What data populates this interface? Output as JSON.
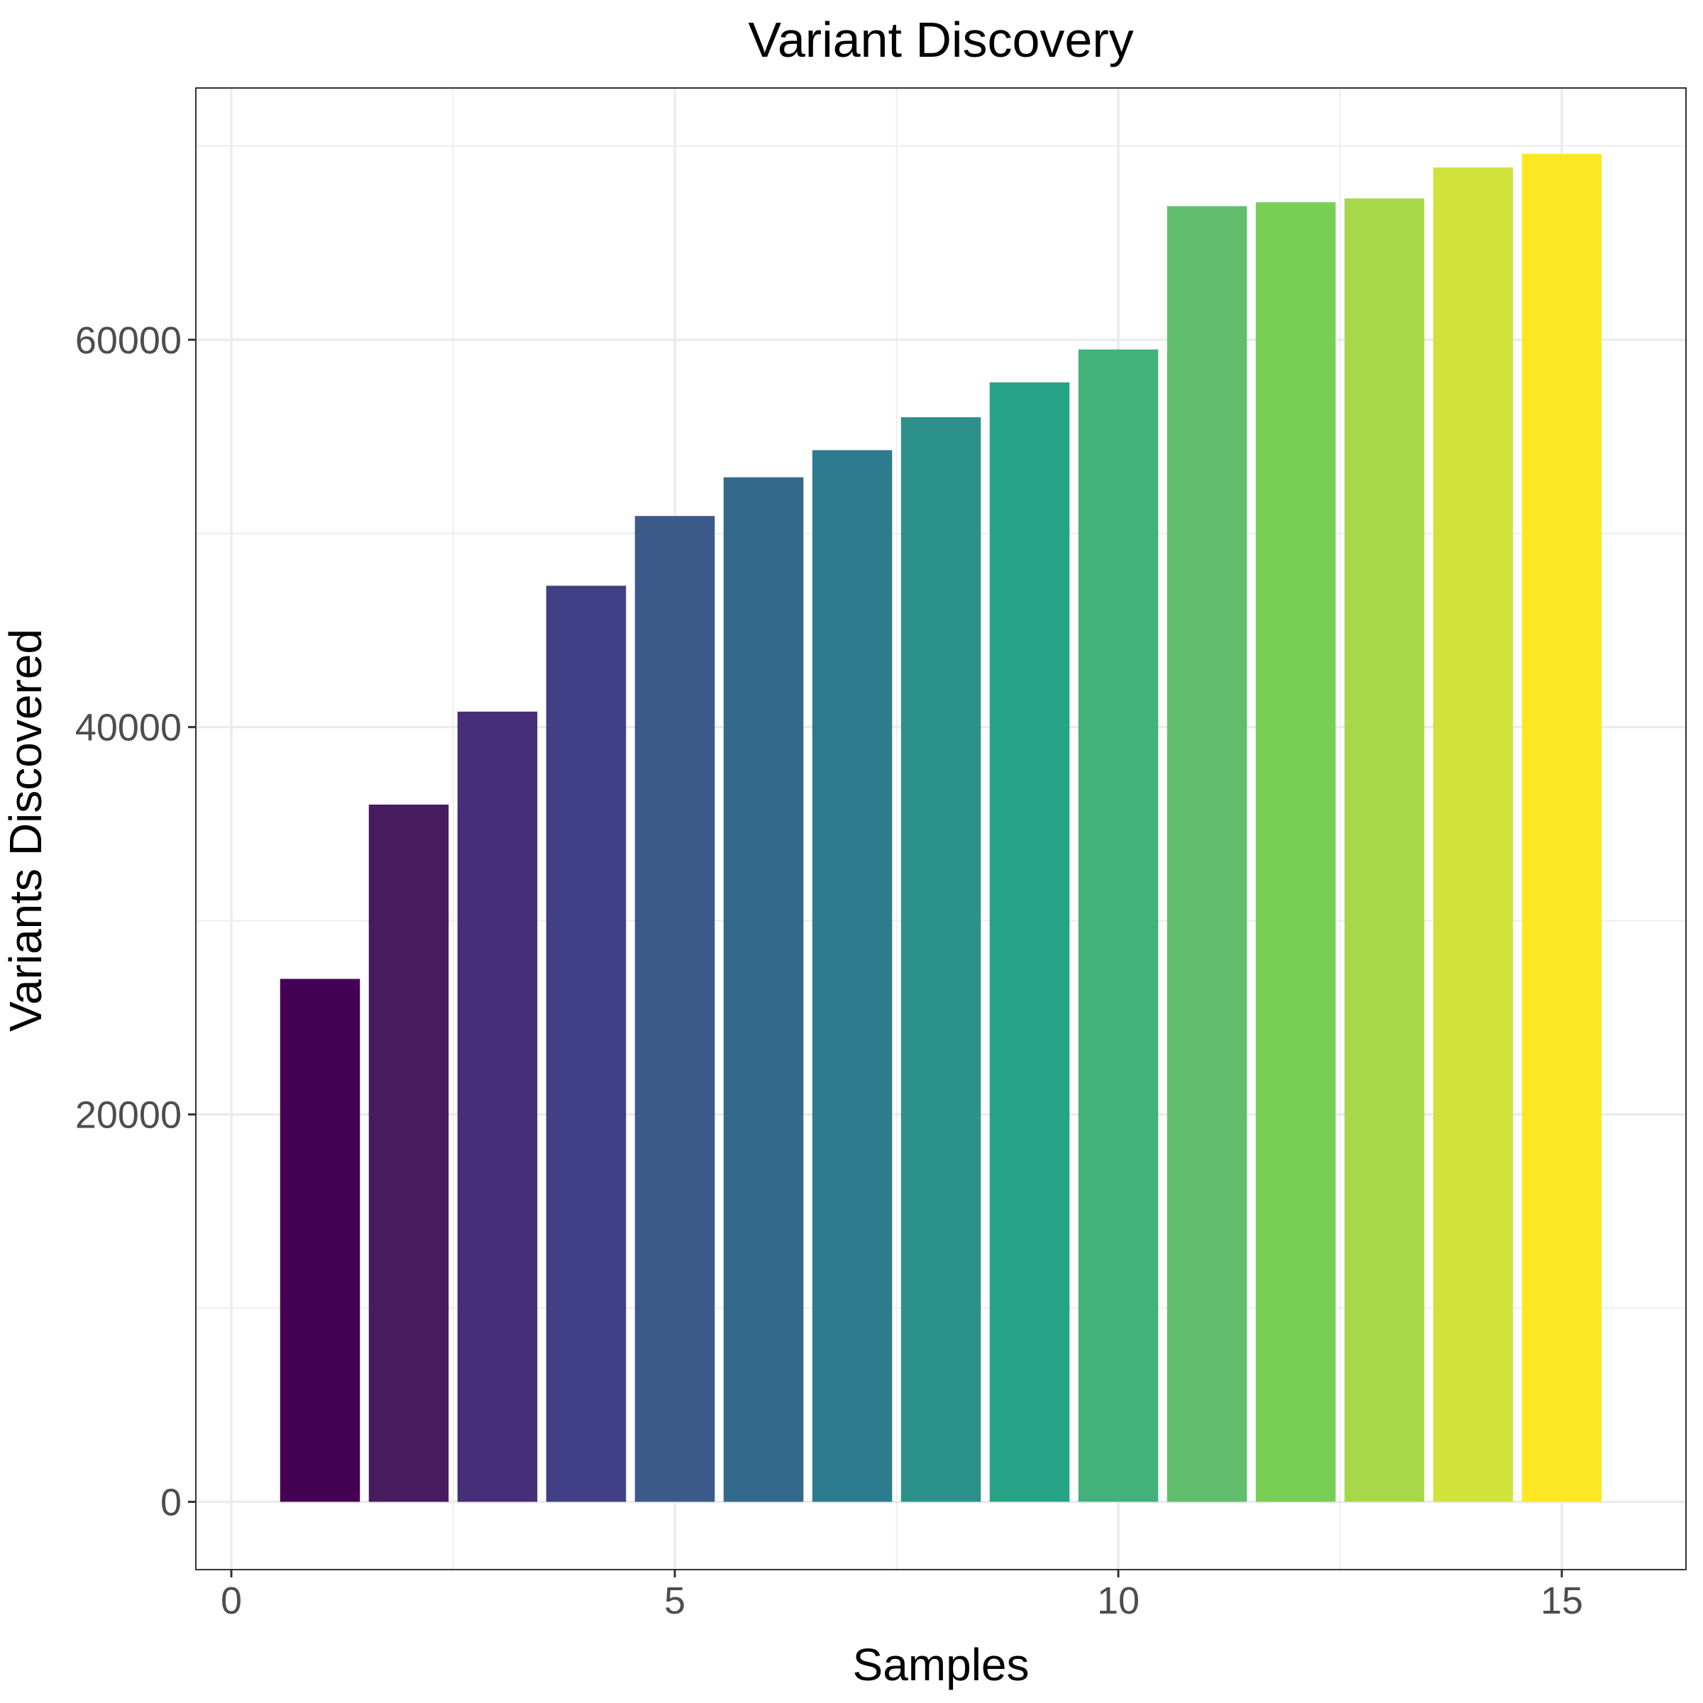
{
  "chart_data": {
    "type": "bar",
    "title": "Variant Discovery",
    "xlabel": "Samples",
    "ylabel": "Variants Discovered",
    "x": [
      1,
      2,
      3,
      4,
      5,
      6,
      7,
      8,
      9,
      10,
      11,
      12,
      13,
      14,
      15
    ],
    "values": [
      27000,
      36000,
      40800,
      47300,
      50900,
      52900,
      54300,
      56000,
      57800,
      59500,
      66900,
      67100,
      67300,
      68900,
      69600
    ],
    "colors": [
      "#440154",
      "#481C5F",
      "#472E78",
      "#413F85",
      "#3C5A89",
      "#336A8C",
      "#2D7C8E",
      "#2C918A",
      "#26A387",
      "#43B17A",
      "#60BE6C",
      "#79CE56",
      "#A7D84A",
      "#D1E23B",
      "#FDE725"
    ],
    "xlim": [
      -0.4,
      16.4
    ],
    "ylim": [
      -3500,
      73000
    ],
    "x_ticks": [
      0,
      5,
      10,
      15
    ],
    "x_tick_labels": [
      "0",
      "5",
      "10",
      "15"
    ],
    "x_minor_ticks": [
      2.5,
      7.5,
      12.5
    ],
    "y_ticks": [
      0,
      20000,
      40000,
      60000
    ],
    "y_tick_labels": [
      "0",
      "20000",
      "40000",
      "60000"
    ],
    "y_minor_ticks": [
      10000,
      30000,
      50000,
      70000
    ],
    "bar_width": 0.9,
    "grid": true,
    "legend": "none"
  }
}
